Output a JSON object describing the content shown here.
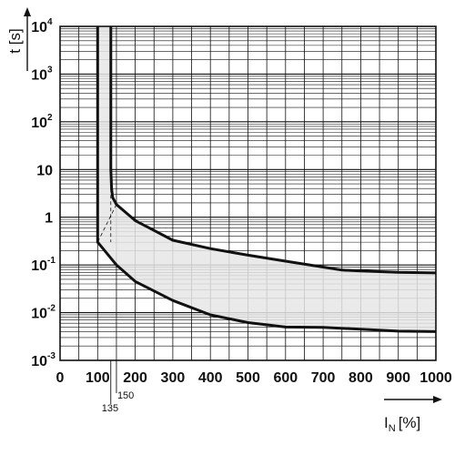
{
  "chart_data": {
    "type": "area",
    "xlabel": {
      "main": "I",
      "sub": "N",
      "unit": "[%]"
    },
    "ylabel": "t [s]",
    "x_scale": "linear",
    "y_scale": "log",
    "xlim": [
      0,
      1000
    ],
    "ylim": [
      0.001,
      10000
    ],
    "x_ticks": [
      "0",
      "100",
      "200",
      "300",
      "400",
      "500",
      "600",
      "700",
      "800",
      "900",
      "1000"
    ],
    "y_ticks": [
      {
        "base": "10",
        "exp": "-3",
        "value": 0.001
      },
      {
        "base": "10",
        "exp": "-2",
        "value": 0.01
      },
      {
        "base": "10",
        "exp": "-1",
        "value": 0.1
      },
      {
        "base": "1",
        "exp": "",
        "value": 1
      },
      {
        "base": "10",
        "exp": "",
        "value": 10
      },
      {
        "base": "10",
        "exp": "2",
        "value": 100
      },
      {
        "base": "10",
        "exp": "3",
        "value": 1000
      },
      {
        "base": "10",
        "exp": "4",
        "value": 10000
      }
    ],
    "annotations": [
      {
        "text": "135",
        "x": 135
      },
      {
        "text": "150",
        "x": 150
      }
    ],
    "grid": true,
    "band_color": "#e6e6e6",
    "curve_color": "#111111",
    "series": [
      {
        "x": [
          135,
          135,
          137,
          140,
          150,
          200,
          300,
          400,
          500,
          600,
          700,
          750,
          800,
          900,
          1000
        ],
        "y": [
          10000,
          10,
          4,
          2.6,
          1.85,
          0.85,
          0.33,
          0.22,
          0.16,
          0.12,
          0.09,
          0.078,
          0.075,
          0.07,
          0.068
        ]
      },
      {
        "x": [
          100,
          100,
          150,
          200,
          300,
          400,
          500,
          600,
          700,
          800,
          900,
          1000
        ],
        "y": [
          10000,
          0.3,
          0.1,
          0.045,
          0.018,
          0.009,
          0.0062,
          0.005,
          0.0049,
          0.0045,
          0.0041,
          0.004
        ]
      }
    ]
  }
}
